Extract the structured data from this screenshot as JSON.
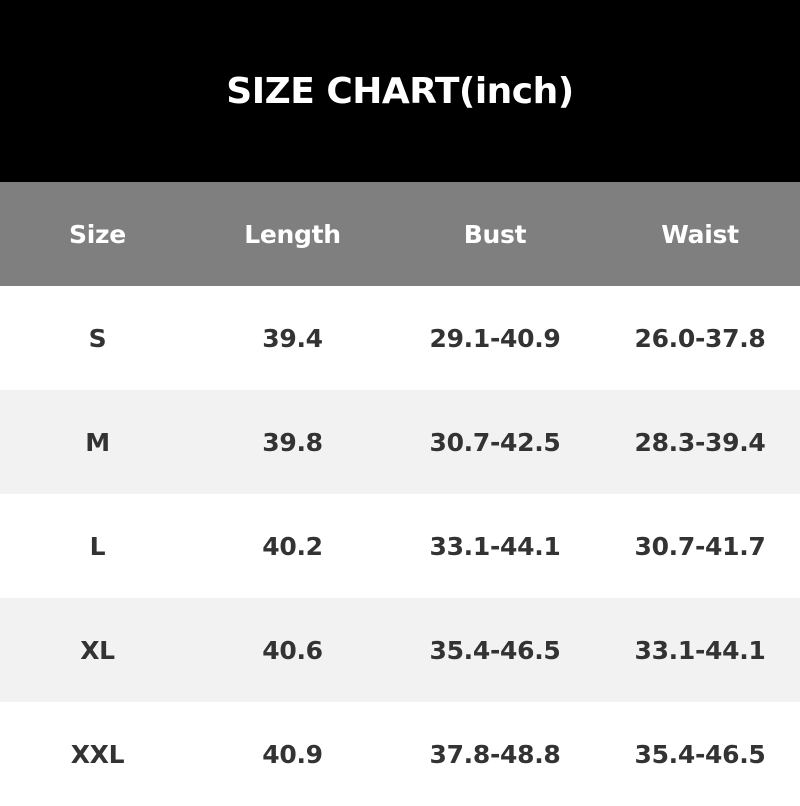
{
  "title": "SIZE CHART(inch)",
  "headers": [
    "Size",
    "Length",
    "Bust",
    "Waist"
  ],
  "rows": [
    [
      "S",
      "39.4",
      "29.1-40.9",
      "26.0-37.8"
    ],
    [
      "M",
      "39.8",
      "30.7-42.5",
      "28.3-39.4"
    ],
    [
      "L",
      "40.2",
      "33.1-44.1",
      "30.7-41.7"
    ],
    [
      "XL",
      "40.6",
      "35.4-46.5",
      "33.1-44.1"
    ],
    [
      "XXL",
      "40.9",
      "37.8-48.8",
      "35.4-46.5"
    ]
  ],
  "colors": {
    "title_bg": "#000000",
    "header_bg": "#7f7f7f",
    "alt_row_bg": "#f2f2f2",
    "text": "#333333"
  }
}
